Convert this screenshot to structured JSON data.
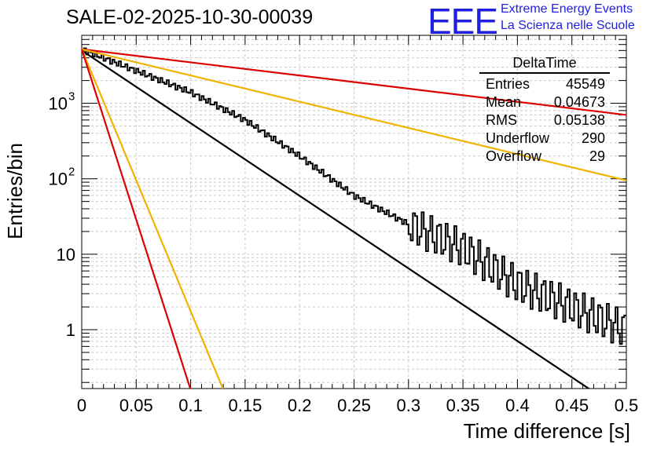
{
  "header": {
    "title": "SALE-02-2025-10-30-00039",
    "logo": "EEE",
    "brand_line1": "Extreme Energy Events",
    "brand_line2": "La Scienza nelle Scuole"
  },
  "stats_box": {
    "name": "DeltaTime",
    "rows": [
      {
        "label": "Entries",
        "value": "45549"
      },
      {
        "label": "Mean",
        "value": "0.04673"
      },
      {
        "label": "RMS",
        "value": "0.05138"
      },
      {
        "label": "Underflow",
        "value": "290"
      },
      {
        "label": "Overflow",
        "value": "29"
      }
    ]
  },
  "chart_data": {
    "type": "line",
    "title": "SALE-02-2025-10-30-00039",
    "xlabel": "Time difference [s]",
    "ylabel": "Entries/bin",
    "xlim": [
      0,
      0.5
    ],
    "ylim_log10": [
      -0.78,
      3.9
    ],
    "yscale": "log",
    "grid": true,
    "x_ticks": [
      0,
      0.05,
      0.1,
      0.15,
      0.2,
      0.25,
      0.3,
      0.35,
      0.4,
      0.45,
      0.5
    ],
    "x_tick_labels": [
      "0",
      "0.05",
      "0.1",
      "0.15",
      "0.2",
      "0.25",
      "0.3",
      "0.35",
      "0.4",
      "0.45",
      "0.5"
    ],
    "y_tick_labels": [
      {
        "value": 1,
        "base": "1",
        "exp": ""
      },
      {
        "value": 10,
        "base": "10",
        "exp": ""
      },
      {
        "value": 100,
        "base": "10",
        "exp": "2"
      },
      {
        "value": 1000,
        "base": "10",
        "exp": "3"
      }
    ],
    "series": [
      {
        "name": "histogram",
        "kind": "step",
        "color": "#000000",
        "x": [
          0,
          0.1,
          0.15,
          0.2,
          0.25,
          0.3,
          0.35,
          0.4,
          0.45,
          0.5
        ],
        "y": [
          5200,
          1400,
          600,
          200,
          60,
          25,
          12,
          4,
          2,
          1
        ]
      },
      {
        "name": "fit-exponential",
        "kind": "line",
        "color": "#000000",
        "x": [
          0,
          0.47
        ],
        "y": [
          5000,
          0.15
        ]
      },
      {
        "name": "red-slow",
        "kind": "line",
        "color": "#dd0000",
        "x": [
          0,
          0.5
        ],
        "y": [
          5200,
          700
        ]
      },
      {
        "name": "orange-slow",
        "kind": "line",
        "color": "#f0b400",
        "x": [
          0,
          0.5
        ],
        "y": [
          5200,
          95
        ]
      },
      {
        "name": "orange-fast",
        "kind": "line",
        "color": "#f0b400",
        "x": [
          0,
          0.13
        ],
        "y": [
          5200,
          0.16
        ]
      },
      {
        "name": "red-fast",
        "kind": "line",
        "color": "#dd0000",
        "x": [
          0,
          0.1
        ],
        "y": [
          5200,
          0.16
        ]
      }
    ]
  }
}
